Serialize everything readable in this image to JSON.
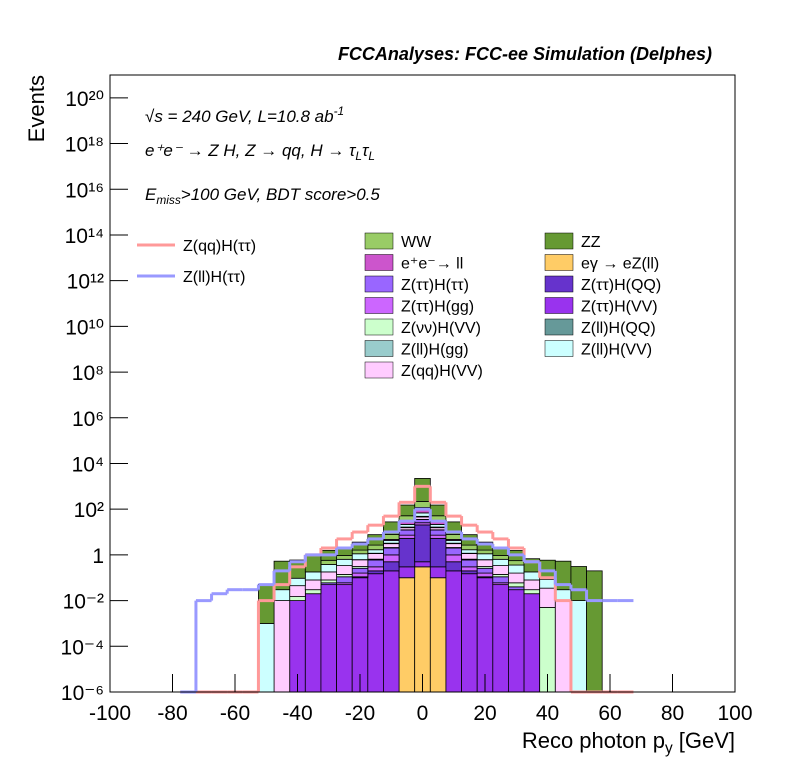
{
  "chart_data": {
    "type": "stacked_histogram",
    "title": "FCCAnalyses: FCC-ee Simulation (Delphes)",
    "y_label": "Events",
    "x_label": {
      "parts": [
        "Reco photon p",
        "y",
        " [GeV]"
      ],
      "script": "sub"
    },
    "annotations": [
      {
        "parts": [
          "√s = 240 GeV, L=10.8 ab",
          "-1"
        ],
        "script": "sup"
      },
      {
        "parts": [
          "e⁺e⁻ → Z H, Z  → qq, H  → τ",
          "L",
          "τ",
          "L"
        ],
        "script": "sub"
      },
      {
        "parts": [
          "E",
          "miss",
          ">100 GeV, BDT score>0.5"
        ],
        "script": "sub"
      }
    ],
    "log_y": true,
    "xlim": [
      -100,
      100
    ],
    "xticks": [
      -100,
      -80,
      -60,
      -40,
      -20,
      0,
      20,
      40,
      60,
      80,
      100
    ],
    "ylim": [
      1e-06,
      1e+21
    ],
    "yticks": [
      {
        "value": 1e-06,
        "label": "10⁻⁶"
      },
      {
        "value": 0.0001,
        "label": "10⁻⁴"
      },
      {
        "value": 0.01,
        "label": "10⁻²"
      },
      1,
      {
        "value": 100,
        "label": "10²"
      },
      {
        "value": 10000,
        "label": "10⁴"
      },
      {
        "value": 1000000.0,
        "label": "10⁶"
      },
      {
        "value": 100000000.0,
        "label": "10⁸"
      },
      {
        "value": 10000000000.0,
        "label": "10¹⁰"
      },
      {
        "value": 1000000000000.0,
        "label": "10¹²"
      },
      {
        "value": 100000000000000.0,
        "label": "10¹⁴"
      },
      {
        "value": 1e+16,
        "label": "10¹⁶"
      },
      {
        "value": 1e+18,
        "label": "10¹⁸"
      },
      {
        "value": 1e+20,
        "label": "10²⁰"
      }
    ],
    "bins": [
      -77.5,
      -72.5,
      -67.5,
      -62.5,
      -57.5,
      -52.5,
      -47.5,
      -42.5,
      -37.5,
      -32.5,
      -27.5,
      -22.5,
      -17.5,
      -12.5,
      -7.5,
      -2.5,
      2.5,
      7.5,
      12.5,
      17.5,
      22.5,
      27.5,
      32.5,
      37.5,
      42.5,
      47.5,
      52.5,
      57.5,
      62.5,
      67.5
    ],
    "series": [
      {
        "name": "eγ → eZ(ll)",
        "color": "#ffcc66",
        "values": [
          0,
          0,
          0,
          0,
          0,
          0,
          0,
          0,
          0,
          0,
          0,
          0,
          0,
          0,
          0.1,
          0.3,
          0.1,
          0,
          0,
          0,
          0,
          0,
          0,
          0,
          0,
          0,
          0,
          0,
          0
        ]
      },
      {
        "name": "Z(ττ)H(VV)",
        "color": "#9933ee",
        "values": [
          0,
          0,
          0,
          0,
          0,
          0,
          0,
          0.01,
          0.02,
          0.05,
          0.05,
          0.1,
          0.15,
          0.2,
          0.2,
          0.2,
          0.2,
          0.2,
          0.15,
          0.1,
          0.05,
          0.03,
          0.02,
          0,
          0,
          0,
          0,
          0,
          0
        ]
      },
      {
        "name": "Z(ττ)H(QQ)",
        "color": "#6633cc",
        "values": [
          0,
          0,
          0,
          0,
          0,
          0,
          0,
          0,
          0,
          0,
          0,
          0.01,
          0.05,
          0.3,
          5,
          20,
          5,
          0.3,
          0.05,
          0.01,
          0,
          0,
          0,
          0,
          0,
          0,
          0,
          0,
          0
        ]
      },
      {
        "name": "Z(ττ)H(gg)",
        "color": "#cc66ff",
        "values": [
          0,
          0,
          0,
          0,
          0,
          0,
          0,
          0,
          0,
          0,
          0.01,
          0.05,
          0.1,
          0.5,
          2,
          5,
          2,
          0.5,
          0.1,
          0.05,
          0.01,
          0,
          0,
          0,
          0,
          0,
          0,
          0,
          0
        ]
      },
      {
        "name": "Z(ττ)H(ττ)",
        "color": "#9966ff",
        "values": [
          0,
          0,
          0,
          0,
          0,
          0,
          0,
          0,
          0,
          0.01,
          0.05,
          0.1,
          0.3,
          1,
          5,
          10,
          5,
          1,
          0.3,
          0.1,
          0.05,
          0.01,
          0,
          0,
          0,
          0,
          0,
          0,
          0
        ]
      },
      {
        "name": "Z(νν)H(VV)",
        "color": "#ccffcc",
        "values": [
          0,
          0,
          0,
          0,
          0,
          0,
          0,
          0.005,
          0.01,
          0.02,
          0.03,
          0.05,
          0.05,
          0.1,
          0.2,
          0.3,
          0.2,
          0.1,
          0.05,
          0.05,
          0.03,
          0.02,
          0.01,
          0.005,
          0,
          0,
          0,
          0,
          0
        ]
      },
      {
        "name": "Z(qq)H(VV)",
        "color": "#ffccff",
        "values": [
          0,
          0,
          0,
          0,
          0,
          0,
          0.01,
          0.03,
          0.05,
          0.1,
          0.2,
          0.3,
          0.5,
          1,
          3,
          10,
          3,
          1,
          0.5,
          0.3,
          0.2,
          0.1,
          0.05,
          0.03,
          0.01,
          0,
          0,
          0,
          0
        ]
      },
      {
        "name": "Z(ll)H(QQ)",
        "color": "#669999",
        "values": [
          0,
          0,
          0,
          0,
          0,
          0,
          0,
          0,
          0,
          0,
          0,
          0,
          0.01,
          0.05,
          0.5,
          2,
          0.5,
          0.05,
          0.01,
          0,
          0,
          0,
          0,
          0,
          0,
          0,
          0,
          0,
          0
        ]
      },
      {
        "name": "Z(ll)H(gg)",
        "color": "#99cccc",
        "values": [
          0,
          0,
          0,
          0,
          0,
          0,
          0,
          0,
          0,
          0,
          0,
          0.01,
          0.02,
          0.1,
          0.5,
          1,
          0.5,
          0.1,
          0.02,
          0.01,
          0,
          0,
          0,
          0,
          0,
          0,
          0,
          0,
          0
        ]
      },
      {
        "name": "Z(ll)H(VV)",
        "color": "#ccffff",
        "values": [
          0,
          0,
          0,
          0,
          0,
          0.001,
          0.02,
          0.05,
          0.1,
          0.2,
          0.3,
          0.5,
          0.5,
          1,
          5,
          20,
          5,
          1,
          0.5,
          0.5,
          0.3,
          0.2,
          0.1,
          0.05,
          0.02,
          0.01,
          0,
          0,
          0
        ]
      },
      {
        "name": "e⁺e⁻→ ll",
        "color": "#cc55cc",
        "values": [
          0,
          0,
          0,
          0,
          0,
          0,
          0,
          0,
          0,
          0,
          0,
          0,
          0,
          0.5,
          10,
          50,
          10,
          0.5,
          0,
          0,
          0,
          0,
          0,
          0,
          0,
          0,
          0,
          0,
          0
        ]
      },
      {
        "name": "WW",
        "color": "#99cc66",
        "values": [
          0,
          0,
          0,
          0,
          0,
          0,
          0,
          0,
          0,
          0.2,
          0.3,
          0.5,
          1,
          3,
          20,
          100,
          20,
          3,
          1,
          0.5,
          0.3,
          0.2,
          0,
          0,
          0,
          0,
          0,
          0,
          0
        ]
      },
      {
        "name": "ZZ",
        "color": "#669933",
        "values": [
          0,
          0,
          0,
          0,
          0,
          0.05,
          0.5,
          0.5,
          0.8,
          1,
          1,
          2,
          5,
          20,
          100,
          2000,
          100,
          20,
          5,
          2,
          1,
          1,
          0.5,
          0.5,
          0.5,
          0.3,
          0.2,
          0,
          0
        ]
      }
    ],
    "lines": [
      {
        "name": "Z(qq)H(ττ)",
        "color": "#ff9999",
        "values": [
          0,
          0,
          0,
          0,
          0,
          0.01,
          0.05,
          0.3,
          1,
          2,
          5,
          10,
          20,
          50,
          200,
          1000,
          200,
          50,
          20,
          10,
          5,
          2,
          0.5,
          0.1,
          0.01,
          0,
          0,
          0,
          0
        ]
      },
      {
        "name": "Z(ll)H(ττ)",
        "color": "#9999ff",
        "values": [
          0,
          0.01,
          0.02,
          0.03,
          0.03,
          0.05,
          0.2,
          0.5,
          1,
          1,
          2,
          3,
          5,
          10,
          30,
          100,
          30,
          10,
          5,
          3,
          2,
          1,
          0.5,
          0.2,
          0.05,
          0.03,
          0.01,
          0.01,
          0.01
        ]
      }
    ]
  }
}
